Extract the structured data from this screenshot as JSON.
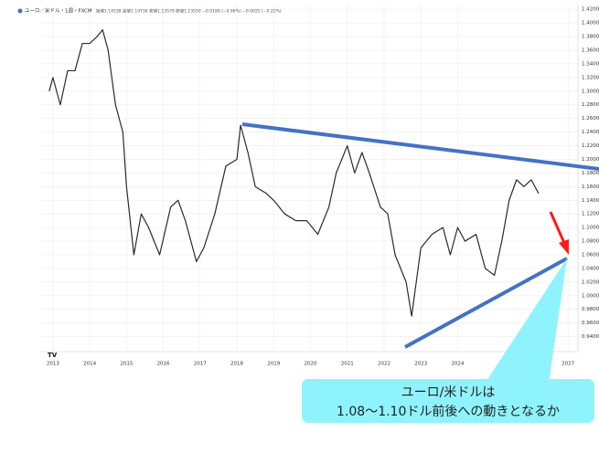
{
  "chart_data": {
    "type": "line",
    "title": "ユーロ／米ドル・1週・FXCM",
    "subtitle": "始値1.14538 高値1.14736 安値1.13579 終値1.13550 −0.0180 (−0.96%) −0.0025 (−0.22%)",
    "annotations": [
      "ユーロ/米ドルは",
      "1.08～1.10ドル前後への動きとなるか"
    ],
    "x": [
      2012.9,
      2013.0,
      2013.2,
      2013.4,
      2013.6,
      2013.8,
      2014.0,
      2014.2,
      2014.35,
      2014.5,
      2014.7,
      2014.9,
      2015.0,
      2015.2,
      2015.4,
      2015.6,
      2015.9,
      2016.2,
      2016.4,
      2016.6,
      2016.9,
      2017.1,
      2017.4,
      2017.7,
      2018.0,
      2018.1,
      2018.3,
      2018.5,
      2018.8,
      2019.0,
      2019.3,
      2019.6,
      2019.9,
      2020.2,
      2020.5,
      2020.7,
      2021.0,
      2021.2,
      2021.4,
      2021.6,
      2021.9,
      2022.1,
      2022.3,
      2022.6,
      2022.75,
      2023.0,
      2023.3,
      2023.6,
      2023.8,
      2024.0,
      2024.2,
      2024.5,
      2024.75,
      2025.0,
      2025.2,
      2025.4,
      2025.6,
      2025.8,
      2026.0,
      2026.2
    ],
    "series": [
      {
        "name": "EUR/USD",
        "color": "#2b2b2b",
        "values": [
          1.3,
          1.32,
          1.28,
          1.33,
          1.33,
          1.37,
          1.37,
          1.38,
          1.39,
          1.36,
          1.28,
          1.24,
          1.16,
          1.06,
          1.12,
          1.1,
          1.06,
          1.13,
          1.14,
          1.11,
          1.05,
          1.07,
          1.12,
          1.19,
          1.2,
          1.25,
          1.21,
          1.16,
          1.15,
          1.14,
          1.12,
          1.11,
          1.11,
          1.09,
          1.13,
          1.18,
          1.22,
          1.18,
          1.21,
          1.18,
          1.13,
          1.12,
          1.06,
          1.02,
          0.97,
          1.07,
          1.09,
          1.1,
          1.06,
          1.1,
          1.08,
          1.09,
          1.04,
          1.03,
          1.08,
          1.14,
          1.17,
          1.16,
          1.17,
          1.15
        ]
      }
    ],
    "xlim": [
      2012.68,
      2027.27
    ],
    "xticks": [
      2013,
      2014,
      2015,
      2016,
      2017,
      2018,
      2019,
      2020,
      2021,
      2022,
      2023,
      2024,
      2027
    ],
    "ylim": [
      0.918,
      1.427
    ],
    "yticks": [
      {
        "value": 0.94,
        "label": "0.94000"
      },
      {
        "value": 0.96,
        "label": "0.96000"
      },
      {
        "value": 0.98,
        "label": "0.98000"
      },
      {
        "value": 1.0,
        "label": "1.00000"
      },
      {
        "value": 1.02,
        "label": "1.02000"
      },
      {
        "value": 1.04,
        "label": "1.04000"
      },
      {
        "value": 1.06,
        "label": "1.06000"
      },
      {
        "value": 1.08,
        "label": "1.08000"
      },
      {
        "value": 1.1,
        "label": "1.10000"
      },
      {
        "value": 1.12,
        "label": "1.12000"
      },
      {
        "value": 1.14,
        "label": "1.14000"
      },
      {
        "value": 1.16,
        "label": "1.16000"
      },
      {
        "value": 1.18,
        "label": "1.18000"
      },
      {
        "value": 1.2,
        "label": "1.20000"
      },
      {
        "value": 1.22,
        "label": "1.22000"
      },
      {
        "value": 1.24,
        "label": "1.24000"
      },
      {
        "value": 1.26,
        "label": "1.26000"
      },
      {
        "value": 1.28,
        "label": "1.28000"
      },
      {
        "value": 1.3,
        "label": "1.30000"
      },
      {
        "value": 1.32,
        "label": "1.32000"
      },
      {
        "value": 1.34,
        "label": "1.34000"
      },
      {
        "value": 1.36,
        "label": "1.36000"
      },
      {
        "value": 1.38,
        "label": "1.38000"
      },
      {
        "value": 1.4,
        "label": "1.40000"
      },
      {
        "value": 1.42,
        "label": "1.42000"
      }
    ],
    "grid": true
  }
}
